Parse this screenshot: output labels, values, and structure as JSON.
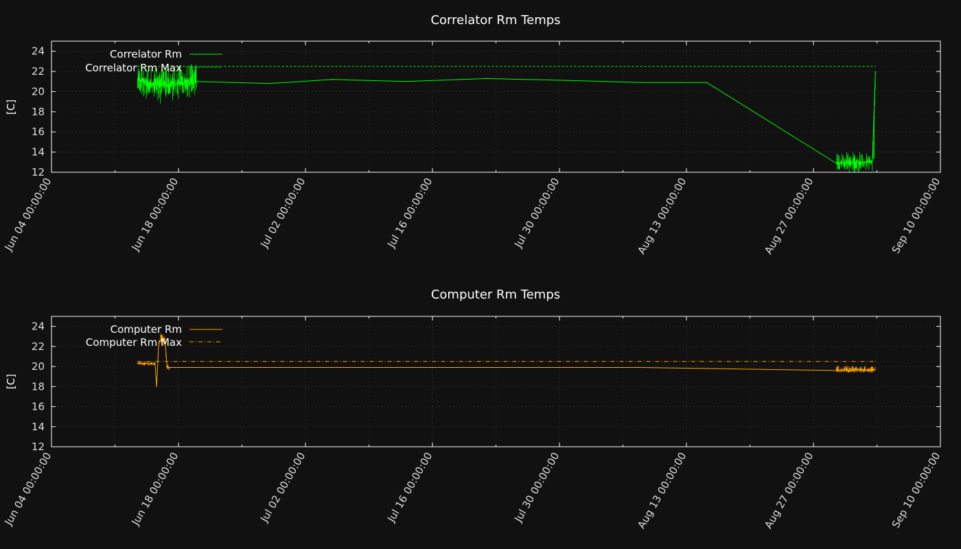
{
  "chart_data": [
    {
      "type": "line",
      "title": "Correlator Rm Temps",
      "xlabel": "",
      "ylabel": "[C]",
      "xlim": [
        "2025-06-04T00:00:00",
        "2025-09-10T00:00:00"
      ],
      "ylim": [
        12,
        25
      ],
      "yticks": [
        12,
        14,
        16,
        18,
        20,
        22,
        24
      ],
      "xtick_labels": [
        "Jun 04 00:00:00",
        "Jun 18 00:00:00",
        "Jul 02 00:00:00",
        "Jul 16 00:00:00",
        "Jul 30 00:00:00",
        "Aug 13 00:00:00",
        "Aug 27 00:00:00",
        "Sep 10 00:00:00"
      ],
      "grid": true,
      "legend_position": "top-left",
      "colors": {
        "series": "#00ff00",
        "max": "#00ff00"
      },
      "series": [
        {
          "name": "Correlator Rm",
          "style": "solid",
          "x": [
            "2025-06-13T12:00:00",
            "2025-06-16T00:00:00",
            "2025-06-20T00:00:00",
            "2025-06-28T00:00:00",
            "2025-07-05T00:00:00",
            "2025-07-13T00:00:00",
            "2025-07-22T00:00:00",
            "2025-07-31T00:00:00",
            "2025-08-08T00:00:00",
            "2025-08-15T06:00:00",
            "2025-08-29T12:00:00",
            "2025-09-02T12:00:00",
            "2025-09-02T20:00:00"
          ],
          "y": [
            21.2,
            20.6,
            21.0,
            20.8,
            21.2,
            21.0,
            21.3,
            21.1,
            20.9,
            20.9,
            12.9,
            13.0,
            22.0
          ],
          "min_band": [
            19.5,
            18.8,
            19.5,
            19.2,
            19.5,
            19.6,
            19.7,
            19.6,
            19.2,
            19.0,
            12.0,
            12.0,
            13.0
          ],
          "max_band": [
            22.3,
            22.5,
            22.8,
            22.9,
            22.8,
            23.0,
            22.8,
            22.6,
            22.3,
            22.0,
            14.0,
            14.0,
            22.0
          ]
        },
        {
          "name": "Correlator Rm Max",
          "style": "dashed",
          "x": [
            "2025-06-13T12:00:00",
            "2025-09-02T20:00:00"
          ],
          "y": [
            22.5,
            22.5
          ]
        }
      ]
    },
    {
      "type": "line",
      "title": "Computer Rm Temps",
      "xlabel": "",
      "ylabel": "[C]",
      "xlim": [
        "2025-06-04T00:00:00",
        "2025-09-10T00:00:00"
      ],
      "ylim": [
        12,
        25
      ],
      "yticks": [
        12,
        14,
        16,
        18,
        20,
        22,
        24
      ],
      "xtick_labels": [
        "Jun 04 00:00:00",
        "Jun 18 00:00:00",
        "Jul 02 00:00:00",
        "Jul 16 00:00:00",
        "Jul 30 00:00:00",
        "Aug 13 00:00:00",
        "Aug 27 00:00:00",
        "Sep 10 00:00:00"
      ],
      "grid": true,
      "legend_position": "top-left",
      "colors": {
        "series": "#ffa500",
        "max": "#ffa500"
      },
      "series": [
        {
          "name": "Computer Rm",
          "style": "solid",
          "x": [
            "2025-06-13T12:00:00",
            "2025-06-15T10:00:00",
            "2025-06-15T14:00:00",
            "2025-06-15T20:00:00",
            "2025-06-16T12:00:00",
            "2025-06-16T18:00:00",
            "2025-06-17T00:00:00",
            "2025-07-10T00:00:00",
            "2025-08-08T00:00:00",
            "2025-08-15T06:00:00",
            "2025-08-29T12:00:00",
            "2025-09-02T20:00:00"
          ],
          "y": [
            20.3,
            20.3,
            18.0,
            22.5,
            22.8,
            19.9,
            19.9,
            19.9,
            19.9,
            19.8,
            19.6,
            19.7
          ],
          "min_band": [
            20.1,
            20.1,
            18.0,
            21.9,
            22.0,
            19.5,
            19.5,
            19.5,
            19.5,
            18.4,
            19.4,
            19.4
          ],
          "max_band": [
            20.5,
            20.5,
            18.0,
            23.3,
            23.3,
            20.2,
            20.2,
            20.2,
            20.1,
            19.9,
            20.1,
            20.1
          ]
        },
        {
          "name": "Computer Rm Max",
          "style": "dash-dot",
          "x": [
            "2025-06-13T12:00:00",
            "2025-09-02T20:00:00"
          ],
          "y": [
            20.5,
            20.5
          ]
        }
      ]
    }
  ]
}
